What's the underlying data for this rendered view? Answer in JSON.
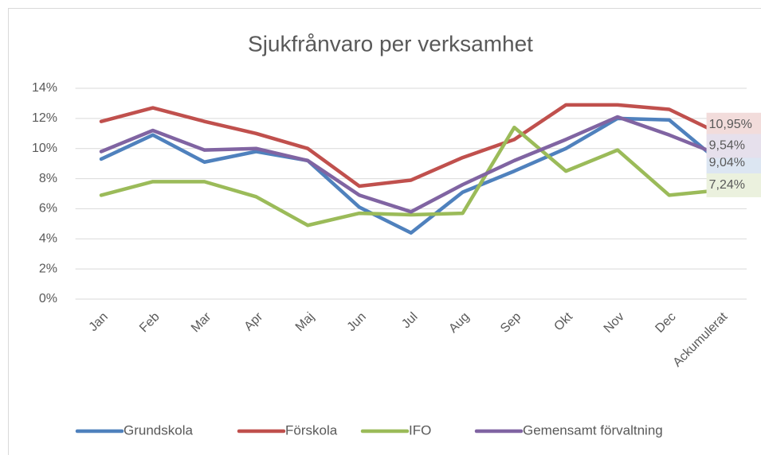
{
  "chart_data": {
    "type": "line",
    "title": "Sjukfrånvaro per verksamhet",
    "categories": [
      "Jan",
      "Feb",
      "Mar",
      "Apr",
      "Maj",
      "Jun",
      "Jul",
      "Aug",
      "Sep",
      "Okt",
      "Nov",
      "Dec",
      "Ackumulerat"
    ],
    "series": [
      {
        "name": "Grundskola",
        "color": "#4f81bd",
        "values": [
          9.3,
          10.9,
          9.1,
          9.8,
          9.2,
          6.1,
          4.4,
          7.1,
          8.5,
          10.0,
          12.0,
          11.9,
          9.04
        ],
        "value_labels": [
          null,
          null,
          null,
          null,
          null,
          null,
          null,
          null,
          null,
          null,
          null,
          null,
          "9,04%"
        ]
      },
      {
        "name": "Förskola",
        "color": "#c0504d",
        "values": [
          11.8,
          12.7,
          11.8,
          11.0,
          10.0,
          7.5,
          7.9,
          9.4,
          10.6,
          12.9,
          12.9,
          12.6,
          10.95
        ],
        "value_labels": [
          null,
          null,
          null,
          null,
          null,
          null,
          null,
          null,
          null,
          null,
          null,
          null,
          "10,95%"
        ]
      },
      {
        "name": "IFO",
        "color": "#9bbb59",
        "values": [
          6.9,
          7.8,
          7.8,
          6.8,
          4.9,
          5.7,
          5.6,
          5.7,
          11.4,
          8.5,
          9.9,
          6.9,
          7.24
        ],
        "value_labels": [
          null,
          null,
          null,
          null,
          null,
          null,
          null,
          null,
          null,
          null,
          null,
          null,
          "7,24%"
        ]
      },
      {
        "name": "Gemensamt förvaltning",
        "color": "#8064a2",
        "values": [
          9.8,
          11.2,
          9.9,
          10.0,
          9.2,
          6.9,
          5.8,
          7.6,
          9.2,
          10.6,
          12.1,
          10.9,
          9.54
        ],
        "value_labels": [
          null,
          null,
          null,
          null,
          null,
          null,
          null,
          null,
          null,
          null,
          null,
          null,
          "9,54%"
        ]
      }
    ],
    "ylim": [
      0,
      14
    ],
    "yticks": [
      {
        "value": 0,
        "label": "0%"
      },
      {
        "value": 2,
        "label": "2%"
      },
      {
        "value": 4,
        "label": "4%"
      },
      {
        "value": 6,
        "label": "6%"
      },
      {
        "value": 8,
        "label": "8%"
      },
      {
        "value": 10,
        "label": "10%"
      },
      {
        "value": 12,
        "label": "12%"
      },
      {
        "value": 14,
        "label": "14%"
      }
    ],
    "grid": true,
    "legend": "bottom"
  }
}
